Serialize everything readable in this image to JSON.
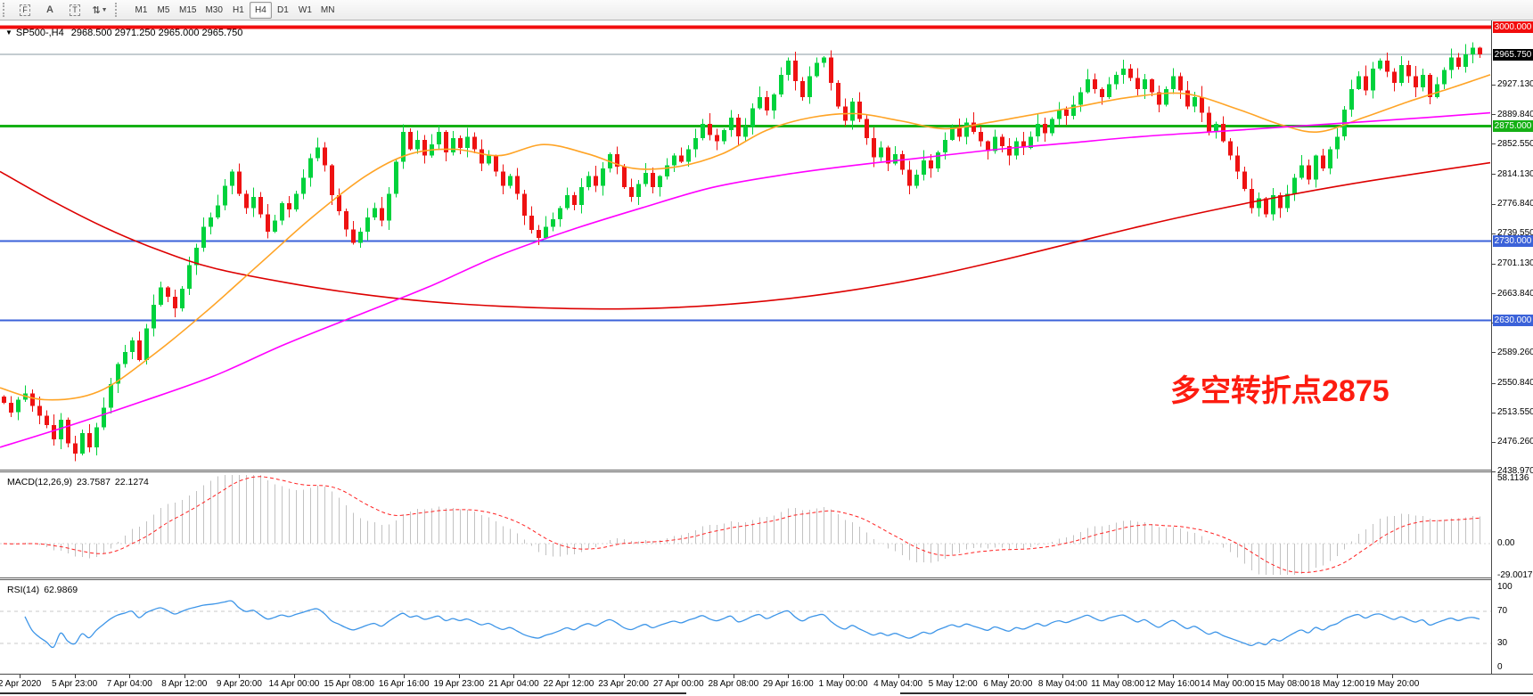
{
  "toolbar": {
    "tools": [
      {
        "name": "fibonacci-tool-icon",
        "glyph": "F",
        "boxed": true
      },
      {
        "name": "text-tool-icon",
        "glyph": "A",
        "boxed": false
      },
      {
        "name": "text-label-tool-icon",
        "glyph": "T",
        "boxed": true
      },
      {
        "name": "arrows-tool-icon",
        "glyph": "⇅",
        "boxed": false,
        "dropdown": true
      }
    ],
    "timeframes": [
      {
        "label": "M1",
        "active": false
      },
      {
        "label": "M5",
        "active": false
      },
      {
        "label": "M15",
        "active": false
      },
      {
        "label": "M30",
        "active": false
      },
      {
        "label": "H1",
        "active": false
      },
      {
        "label": "H4",
        "active": true
      },
      {
        "label": "D1",
        "active": false
      },
      {
        "label": "W1",
        "active": false
      },
      {
        "label": "MN",
        "active": false
      }
    ]
  },
  "chart_header": {
    "symbol": "SP500-,H4",
    "quotes": "2968.500 2971.250 2965.000 2965.750"
  },
  "annotation": {
    "text": "多空转折点2875",
    "color": "#fd1c10"
  },
  "price_scale": {
    "ticks": [
      {
        "label": "2927.130",
        "price": 2927.13
      },
      {
        "label": "2889.840",
        "price": 2889.84
      },
      {
        "label": "2852.550",
        "price": 2852.55
      },
      {
        "label": "2814.130",
        "price": 2814.13
      },
      {
        "label": "2776.840",
        "price": 2776.84
      },
      {
        "label": "2739.550",
        "price": 2739.55
      },
      {
        "label": "2701.130",
        "price": 2701.13
      },
      {
        "label": "2663.840",
        "price": 2663.84
      },
      {
        "label": "2626.550",
        "price": 2626.55
      },
      {
        "label": "2589.260",
        "price": 2589.26
      },
      {
        "label": "2550.840",
        "price": 2550.84
      },
      {
        "label": "2513.550",
        "price": 2513.55
      },
      {
        "label": "2476.260",
        "price": 2476.26
      },
      {
        "label": "2438.970",
        "price": 2438.97
      }
    ],
    "badges": [
      {
        "label": "3000.000",
        "price": 3000.0,
        "bg": "#f20d0d"
      },
      {
        "label": "2965.750",
        "price": 2965.75,
        "bg": "#000000"
      },
      {
        "label": "2875.000",
        "price": 2875.0,
        "bg": "#15b015"
      },
      {
        "label": "2730.000",
        "price": 2730.0,
        "bg": "#3b62d9"
      },
      {
        "label": "2630.000",
        "price": 2630.0,
        "bg": "#3b62d9"
      }
    ]
  },
  "time_axis": {
    "labels": [
      "2 Apr 2020",
      "5 Apr 23:00",
      "7 Apr 04:00",
      "8 Apr 12:00",
      "9 Apr 20:00",
      "14 Apr 00:00",
      "15 Apr 08:00",
      "16 Apr 16:00",
      "19 Apr 23:00",
      "21 Apr 04:00",
      "22 Apr 12:00",
      "23 Apr 20:00",
      "27 Apr 00:00",
      "28 Apr 08:00",
      "29 Apr 16:00",
      "1 May 00:00",
      "4 May 04:00",
      "5 May 12:00",
      "6 May 20:00",
      "8 May 04:00",
      "11 May 08:00",
      "12 May 16:00",
      "14 May 00:00",
      "15 May 08:00",
      "18 May 12:00",
      "19 May 20:00"
    ]
  },
  "indicators": {
    "macd": {
      "label": "MACD(12,26,9)",
      "value": "23.7587",
      "signal": "22.1274",
      "scale_labels": [
        "58.1136",
        "0.00",
        "-29.0017"
      ],
      "scale_values": [
        58.1136,
        0,
        -29.0017
      ],
      "histogram_color": "#c2c2c2",
      "signal_color": "#ff2222"
    },
    "rsi": {
      "label": "RSI(14)",
      "value": "62.9869",
      "scale_labels": [
        "100",
        "70",
        "30",
        "0"
      ],
      "scale_values": [
        100,
        70,
        30,
        0
      ],
      "levels": [
        70,
        30
      ],
      "line_color": "#3d95e8",
      "level_color": "#c9c9c9"
    }
  },
  "chart_data": {
    "type": "candlestick",
    "symbol": "SP500-",
    "timeframe": "H4",
    "current_bar": {
      "open": 2968.5,
      "high": 2971.25,
      "low": 2965.0,
      "close": 2965.75
    },
    "y_axis": {
      "min": 2438.97,
      "max": 3000.0
    },
    "bull_color": "#00d23c",
    "bear_color": "#ee1212",
    "bid_line": {
      "price": 2965.75,
      "color": "#8a99a0"
    },
    "horizontal_lines": [
      {
        "price": 3000.0,
        "color": "#f20d0d",
        "width": 4
      },
      {
        "price": 2875.0,
        "color": "#15b015",
        "width": 3
      },
      {
        "price": 2730.0,
        "color": "#3b62d9",
        "width": 2
      },
      {
        "price": 2630.0,
        "color": "#3b62d9",
        "width": 2
      }
    ],
    "closes": [
      2526,
      2514,
      2530,
      2538,
      2522,
      2510,
      2498,
      2480,
      2505,
      2475,
      2462,
      2488,
      2470,
      2495,
      2520,
      2550,
      2575,
      2590,
      2605,
      2580,
      2620,
      2650,
      2672,
      2660,
      2645,
      2670,
      2700,
      2722,
      2748,
      2760,
      2775,
      2800,
      2818,
      2790,
      2772,
      2786,
      2764,
      2742,
      2756,
      2778,
      2770,
      2790,
      2810,
      2835,
      2848,
      2826,
      2788,
      2768,
      2745,
      2728,
      2742,
      2760,
      2772,
      2756,
      2790,
      2830,
      2868,
      2846,
      2858,
      2838,
      2852,
      2868,
      2842,
      2860,
      2848,
      2862,
      2846,
      2828,
      2838,
      2818,
      2800,
      2812,
      2790,
      2762,
      2744,
      2734,
      2748,
      2758,
      2772,
      2788,
      2776,
      2798,
      2812,
      2800,
      2822,
      2840,
      2824,
      2798,
      2786,
      2802,
      2816,
      2798,
      2812,
      2826,
      2838,
      2830,
      2846,
      2860,
      2878,
      2864,
      2856,
      2870,
      2886,
      2862,
      2874,
      2898,
      2912,
      2895,
      2915,
      2940,
      2958,
      2932,
      2912,
      2938,
      2955,
      2962,
      2930,
      2900,
      2882,
      2906,
      2884,
      2860,
      2836,
      2848,
      2828,
      2840,
      2820,
      2800,
      2814,
      2832,
      2822,
      2842,
      2858,
      2874,
      2862,
      2880,
      2868,
      2856,
      2844,
      2862,
      2850,
      2838,
      2856,
      2848,
      2862,
      2878,
      2866,
      2884,
      2896,
      2888,
      2902,
      2918,
      2934,
      2922,
      2912,
      2928,
      2940,
      2948,
      2936,
      2922,
      2934,
      2918,
      2902,
      2922,
      2938,
      2920,
      2900,
      2912,
      2892,
      2868,
      2878,
      2856,
      2838,
      2818,
      2796,
      2772,
      2784,
      2764,
      2788,
      2772,
      2790,
      2810,
      2826,
      2808,
      2838,
      2822,
      2846,
      2862,
      2896,
      2922,
      2938,
      2920,
      2948,
      2958,
      2944,
      2930,
      2952,
      2938,
      2924,
      2940,
      2912,
      2928,
      2946,
      2962,
      2950,
      2966,
      2974,
      2966
    ],
    "moving_averages": [
      {
        "name": "slow-ma",
        "color": "#dd0000",
        "points": [
          [
            0,
            2818
          ],
          [
            60,
            2780
          ],
          [
            120,
            2746
          ],
          [
            180,
            2718
          ],
          [
            240,
            2696
          ],
          [
            320,
            2678
          ],
          [
            400,
            2664
          ],
          [
            480,
            2654
          ],
          [
            560,
            2648
          ],
          [
            640,
            2645
          ],
          [
            720,
            2645
          ],
          [
            800,
            2649
          ],
          [
            880,
            2657
          ],
          [
            960,
            2669
          ],
          [
            1040,
            2685
          ],
          [
            1120,
            2705
          ],
          [
            1200,
            2727
          ],
          [
            1280,
            2749
          ],
          [
            1360,
            2769
          ],
          [
            1440,
            2787
          ],
          [
            1520,
            2803
          ],
          [
            1600,
            2817
          ],
          [
            1672,
            2829
          ]
        ]
      },
      {
        "name": "medium-ma",
        "color": "#ffa426",
        "points": [
          [
            0,
            2545
          ],
          [
            50,
            2530
          ],
          [
            110,
            2540
          ],
          [
            170,
            2585
          ],
          [
            230,
            2640
          ],
          [
            290,
            2700
          ],
          [
            350,
            2760
          ],
          [
            410,
            2812
          ],
          [
            460,
            2840
          ],
          [
            510,
            2846
          ],
          [
            560,
            2838
          ],
          [
            610,
            2852
          ],
          [
            660,
            2840
          ],
          [
            710,
            2822
          ],
          [
            760,
            2824
          ],
          [
            810,
            2840
          ],
          [
            860,
            2870
          ],
          [
            910,
            2886
          ],
          [
            960,
            2891
          ],
          [
            1010,
            2882
          ],
          [
            1060,
            2872
          ],
          [
            1110,
            2880
          ],
          [
            1160,
            2890
          ],
          [
            1210,
            2900
          ],
          [
            1270,
            2912
          ],
          [
            1330,
            2916
          ],
          [
            1390,
            2896
          ],
          [
            1440,
            2876
          ],
          [
            1480,
            2868
          ],
          [
            1530,
            2886
          ],
          [
            1580,
            2906
          ],
          [
            1630,
            2924
          ],
          [
            1672,
            2940
          ]
        ]
      },
      {
        "name": "long-ma",
        "color": "#ff00ff",
        "points": [
          [
            0,
            2470
          ],
          [
            80,
            2498
          ],
          [
            160,
            2528
          ],
          [
            240,
            2560
          ],
          [
            320,
            2600
          ],
          [
            400,
            2636
          ],
          [
            480,
            2672
          ],
          [
            560,
            2712
          ],
          [
            640,
            2744
          ],
          [
            720,
            2772
          ],
          [
            800,
            2798
          ],
          [
            880,
            2814
          ],
          [
            960,
            2826
          ],
          [
            1040,
            2836
          ],
          [
            1120,
            2846
          ],
          [
            1200,
            2854
          ],
          [
            1280,
            2862
          ],
          [
            1360,
            2868
          ],
          [
            1440,
            2874
          ],
          [
            1520,
            2880
          ],
          [
            1600,
            2886
          ],
          [
            1672,
            2892
          ]
        ]
      }
    ]
  }
}
